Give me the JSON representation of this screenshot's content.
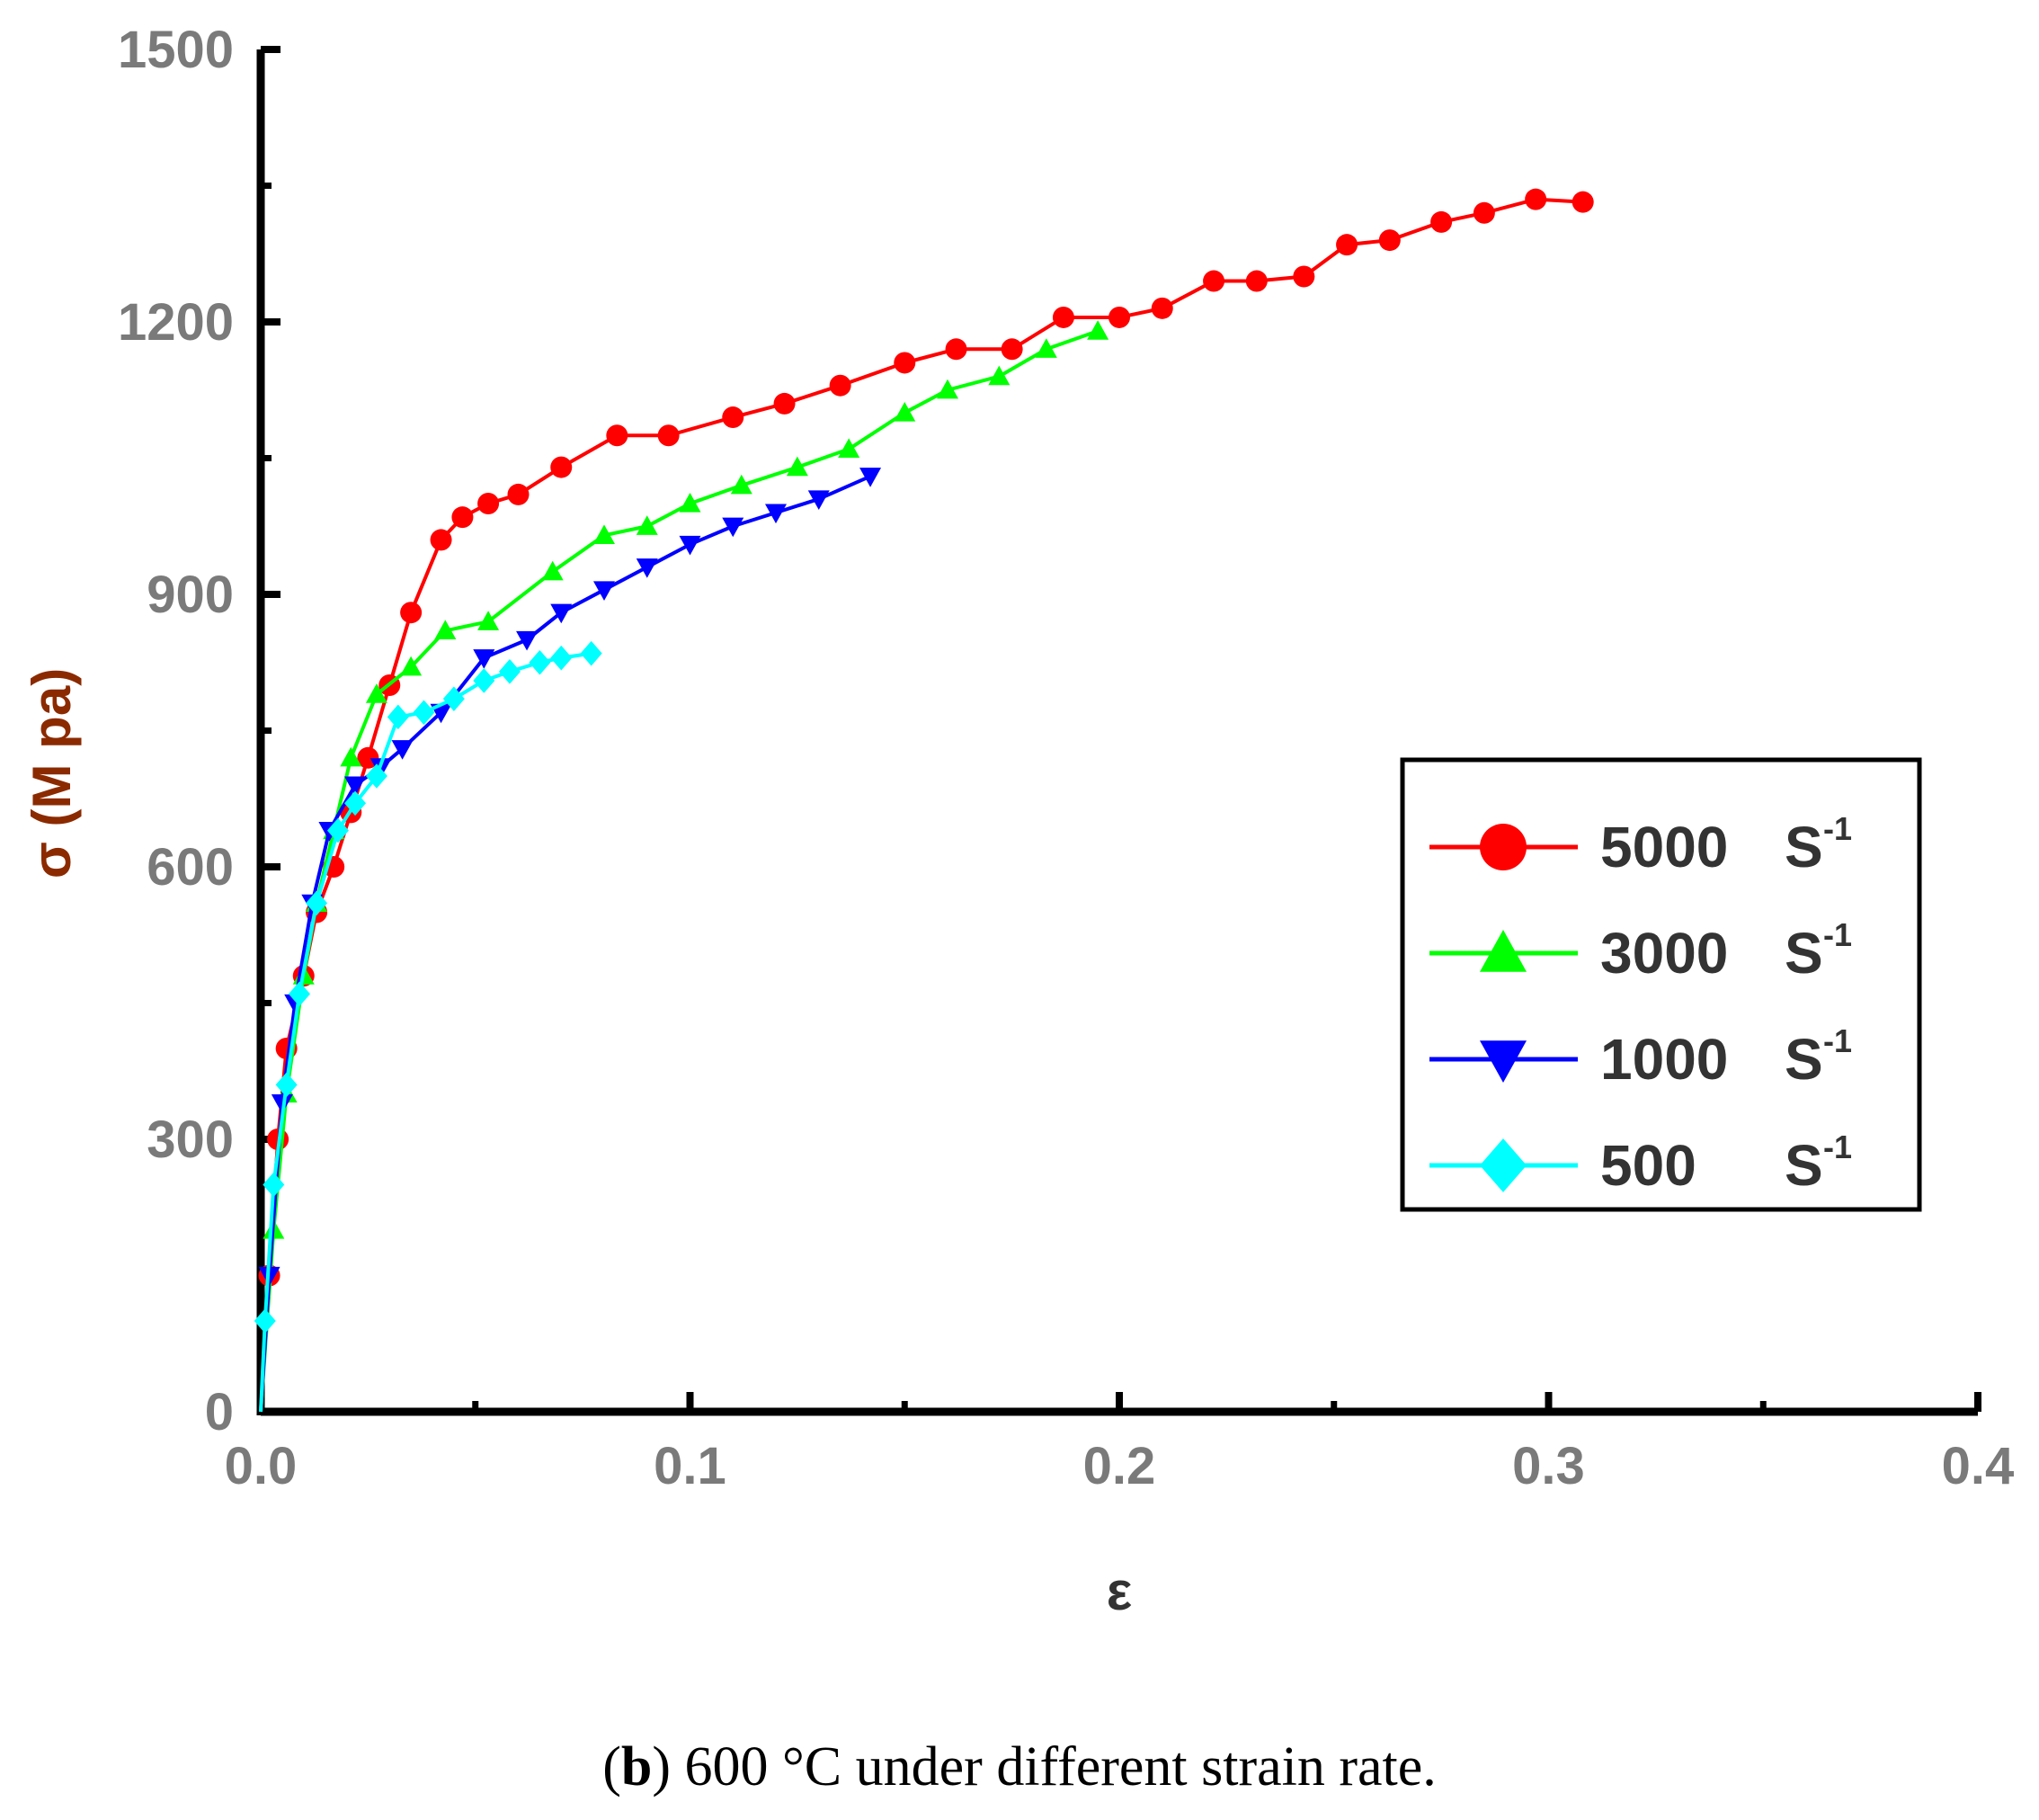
{
  "chart_data": {
    "type": "line",
    "title": "",
    "xlabel": "ε",
    "ylabel": "σ (M pa)",
    "xlim": [
      0.0,
      0.4
    ],
    "ylim": [
      0,
      1500
    ],
    "xticks": [
      0.0,
      0.1,
      0.2,
      0.3,
      0.4
    ],
    "xtick_labels": [
      "0.0",
      "0.1",
      "0.2",
      "0.3",
      "0.4"
    ],
    "yticks": [
      0,
      300,
      600,
      900,
      1200,
      1500
    ],
    "ytick_labels": [
      "0",
      "300",
      "600",
      "900",
      "1200",
      "1500"
    ],
    "grid": false,
    "legend_position": "right-middle",
    "series": [
      {
        "name": "5000",
        "unit": "S",
        "sup": "-1",
        "color": "#ff0000",
        "marker": "circle",
        "x": [
          0.0,
          0.002,
          0.004,
          0.006,
          0.01,
          0.013,
          0.017,
          0.021,
          0.025,
          0.03,
          0.035,
          0.042,
          0.047,
          0.053,
          0.06,
          0.07,
          0.083,
          0.095,
          0.11,
          0.122,
          0.135,
          0.15,
          0.162,
          0.175,
          0.187,
          0.2,
          0.21,
          0.222,
          0.232,
          0.243,
          0.253,
          0.263,
          0.275,
          0.285,
          0.297,
          0.308
        ],
        "y": [
          0,
          150,
          300,
          400,
          480,
          550,
          600,
          660,
          720,
          800,
          880,
          960,
          985,
          1000,
          1010,
          1040,
          1075,
          1075,
          1095,
          1110,
          1130,
          1155,
          1170,
          1170,
          1205,
          1205,
          1215,
          1245,
          1245,
          1250,
          1285,
          1290,
          1310,
          1320,
          1335,
          1332
        ]
      },
      {
        "name": "3000",
        "unit": "S",
        "sup": "-1",
        "color": "#00ff00",
        "marker": "triangle-up",
        "x": [
          0.0,
          0.003,
          0.006,
          0.01,
          0.013,
          0.017,
          0.021,
          0.027,
          0.035,
          0.043,
          0.053,
          0.068,
          0.08,
          0.09,
          0.1,
          0.112,
          0.125,
          0.137,
          0.15,
          0.16,
          0.172,
          0.183,
          0.195
        ],
        "y": [
          0,
          200,
          350,
          480,
          560,
          640,
          720,
          790,
          820,
          860,
          870,
          925,
          965,
          975,
          1000,
          1020,
          1040,
          1060,
          1100,
          1125,
          1140,
          1170,
          1190
        ]
      },
      {
        "name": "1000",
        "unit": "S",
        "sup": "-1",
        "color": "#0000ff",
        "marker": "triangle-down",
        "x": [
          0.0,
          0.002,
          0.005,
          0.008,
          0.012,
          0.016,
          0.022,
          0.028,
          0.033,
          0.042,
          0.052,
          0.062,
          0.07,
          0.08,
          0.09,
          0.1,
          0.11,
          0.12,
          0.13,
          0.142
        ],
        "y": [
          0,
          150,
          340,
          450,
          560,
          640,
          690,
          710,
          730,
          770,
          830,
          850,
          880,
          905,
          930,
          955,
          975,
          990,
          1005,
          1030
        ]
      },
      {
        "name": "500",
        "unit": "S",
        "sup": "-1",
        "color": "#00ffff",
        "marker": "diamond",
        "x": [
          0.0,
          0.001,
          0.003,
          0.006,
          0.009,
          0.013,
          0.018,
          0.022,
          0.027,
          0.032,
          0.038,
          0.045,
          0.052,
          0.058,
          0.065,
          0.07,
          0.077
        ],
        "y": [
          0,
          100,
          250,
          360,
          460,
          560,
          640,
          670,
          700,
          765,
          770,
          785,
          805,
          815,
          825,
          830,
          835
        ]
      }
    ]
  },
  "caption": {
    "bold": "b",
    "text": " 600 °C under different strain rate."
  }
}
